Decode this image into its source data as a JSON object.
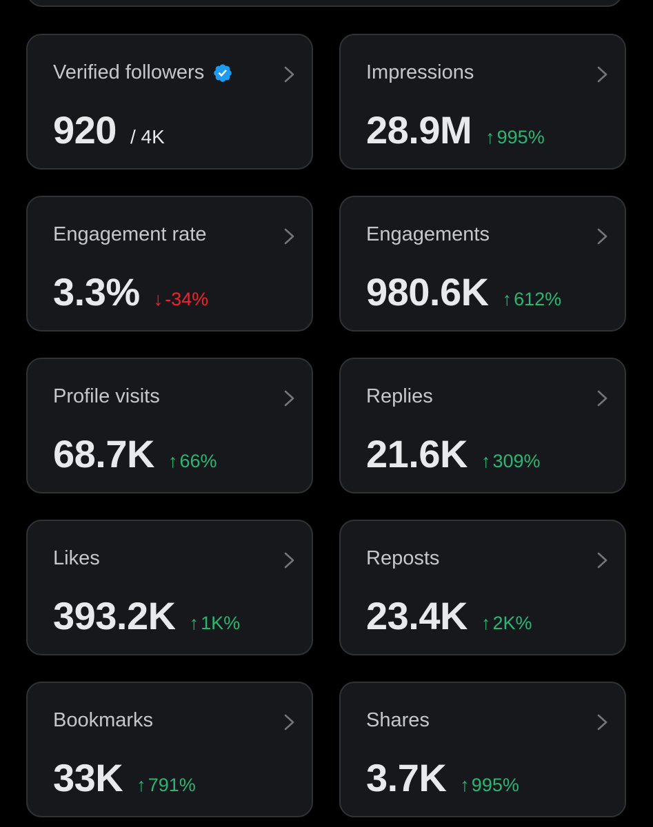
{
  "colors": {
    "background": "#000000",
    "card": "#16181c",
    "border": "#2f3336",
    "positive": "#2bb673",
    "negative": "#f4212e",
    "verified": "#1d9bf0"
  },
  "metrics": [
    {
      "label": "Verified followers",
      "value": "920",
      "total": "/ 4K",
      "verified_icon": "verified-badge-icon"
    },
    {
      "label": "Impressions",
      "value": "28.9M",
      "change": "995%",
      "arrow": "↑",
      "direction": "up"
    },
    {
      "label": "Engagement rate",
      "value": "3.3%",
      "change": "-34%",
      "arrow": "↓",
      "direction": "down"
    },
    {
      "label": "Engagements",
      "value": "980.6K",
      "change": "612%",
      "arrow": "↑",
      "direction": "up"
    },
    {
      "label": "Profile visits",
      "value": "68.7K",
      "change": "66%",
      "arrow": "↑",
      "direction": "up"
    },
    {
      "label": "Replies",
      "value": "21.6K",
      "change": "309%",
      "arrow": "↑",
      "direction": "up"
    },
    {
      "label": "Likes",
      "value": "393.2K",
      "change": "1K%",
      "arrow": "↑",
      "direction": "up"
    },
    {
      "label": "Reposts",
      "value": "23.4K",
      "change": "2K%",
      "arrow": "↑",
      "direction": "up"
    },
    {
      "label": "Bookmarks",
      "value": "33K",
      "change": "791%",
      "arrow": "↑",
      "direction": "up"
    },
    {
      "label": "Shares",
      "value": "3.7K",
      "change": "995%",
      "arrow": "↑",
      "direction": "up"
    }
  ]
}
